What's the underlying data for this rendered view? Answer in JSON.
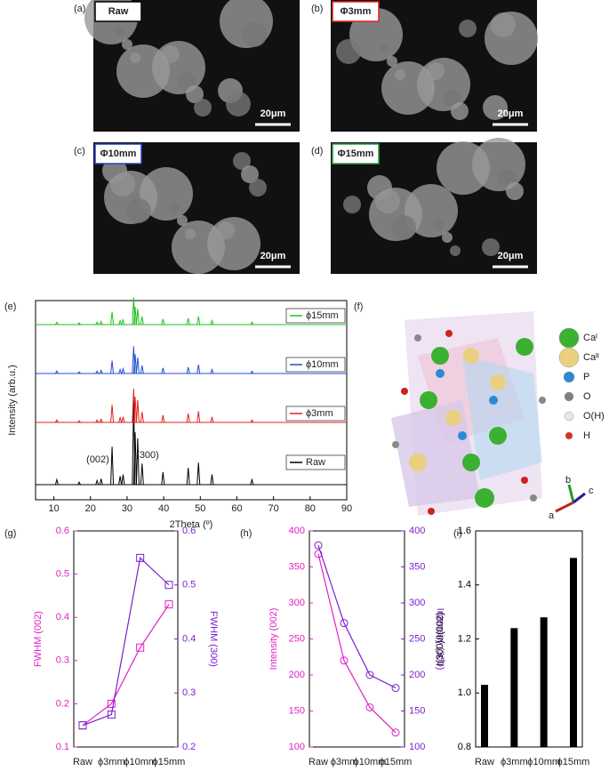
{
  "sem": [
    {
      "panel": "(a)",
      "label": "Raw",
      "scale": "20μm",
      "color": "#000000"
    },
    {
      "panel": "(b)",
      "label": "Φ3mm",
      "scale": "20μm",
      "color": "#e02020"
    },
    {
      "panel": "(c)",
      "label": "Φ10mm",
      "scale": "20μm",
      "color": "#2040c0"
    },
    {
      "panel": "(d)",
      "label": "Φ15mm",
      "scale": "20μm",
      "color": "#20a040"
    }
  ],
  "xrd": {
    "panel": "(e)",
    "type": "peaks",
    "xlabel": "2Theta (º)",
    "ylabel": "Intensity (arb.u.)",
    "xlim": [
      5,
      90
    ],
    "xticks": [
      10,
      20,
      30,
      40,
      50,
      60,
      70,
      80,
      90
    ],
    "annotations": [
      "(002)",
      "(300)"
    ],
    "peak_x": [
      10.8,
      16.9,
      21.8,
      22.9,
      25.9,
      28.1,
      28.9,
      31.8,
      32.2,
      32.9,
      34.1,
      39.8,
      46.7,
      49.5,
      53.2,
      64.1
    ],
    "series": [
      {
        "name": "Raw",
        "color": "#000000",
        "values": [
          6,
          3,
          5,
          7,
          45,
          10,
          12,
          100,
          62,
          55,
          25,
          15,
          20,
          26,
          12,
          6
        ]
      },
      {
        "name": "ϕ3mm",
        "color": "#e02020",
        "values": [
          3,
          2,
          3,
          4,
          22,
          6,
          7,
          42,
          32,
          28,
          13,
          9,
          11,
          14,
          7,
          3
        ]
      },
      {
        "name": "ϕ10mm",
        "color": "#2050d0",
        "values": [
          3,
          2,
          3,
          4,
          16,
          5,
          6,
          34,
          24,
          20,
          10,
          7,
          8,
          11,
          5,
          3
        ]
      },
      {
        "name": "ϕ15mm",
        "color": "#20c020",
        "values": [
          3,
          2,
          3,
          4,
          16,
          5,
          6,
          34,
          22,
          20,
          10,
          7,
          8,
          10,
          5,
          3
        ]
      }
    ]
  },
  "crystal": {
    "panel": "(f)",
    "legend": [
      {
        "label": "Caᴵ",
        "color": "#3cb030"
      },
      {
        "label": "Caᴵᴵ",
        "color": "#e8d080"
      },
      {
        "label": "P",
        "color": "#2a8ad8"
      },
      {
        "label": "O",
        "color": "#808080"
      },
      {
        "label": "O(H)",
        "color": "#e8e8e8"
      },
      {
        "label": "H",
        "color": "#e03020"
      }
    ],
    "axes": [
      "a",
      "b",
      "c"
    ]
  },
  "chart_data": [
    {
      "panel": "(g)",
      "type": "line",
      "categories": [
        "Raw",
        "ϕ3mm",
        "ϕ10mm",
        "ϕ15mm"
      ],
      "ylabel": "FWHM (002)",
      "y2label": "FWHM (300)",
      "ylim": [
        0.1,
        0.6
      ],
      "yticks": [
        0.1,
        0.2,
        0.3,
        0.4,
        0.5,
        0.6
      ],
      "y2lim": [
        0.2,
        0.6
      ],
      "y2ticks": [
        0.2,
        0.3,
        0.4,
        0.5,
        0.6
      ],
      "marker": "square",
      "series": [
        {
          "color": "#e020c8",
          "values": [
            0.15,
            0.2,
            0.33,
            0.43
          ]
        },
        {
          "color": "#7a20d0",
          "axis": "y2",
          "values": [
            0.24,
            0.26,
            0.55,
            0.5
          ]
        }
      ]
    },
    {
      "panel": "(h)",
      "type": "line",
      "categories": [
        "Raw",
        "ϕ3mm",
        "ϕ10mm",
        "ϕ15mm"
      ],
      "ylabel": "Intensity (002)",
      "y2label": "Intensity (300)",
      "ylim": [
        100,
        400
      ],
      "yticks": [
        100,
        150,
        200,
        250,
        300,
        350,
        400
      ],
      "y2lim": [
        100,
        400
      ],
      "y2ticks": [
        100,
        150,
        200,
        250,
        300,
        350,
        400
      ],
      "marker": "circle",
      "series": [
        {
          "color": "#e020c8",
          "values": [
            368,
            220,
            155,
            120
          ]
        },
        {
          "color": "#7a20d0",
          "axis": "y2",
          "values": [
            380,
            272,
            200,
            182
          ]
        }
      ]
    },
    {
      "panel": "(i)",
      "type": "bar",
      "categories": [
        "Raw",
        "ϕ3mm",
        "ϕ10mm",
        "ϕ15mm"
      ],
      "ylabel": "I(300)/I(002)",
      "ylim": [
        0.8,
        1.6
      ],
      "yticks": [
        0.8,
        {
          "value": 1,
          "label": "1.0"
        },
        1.2,
        1.4,
        1.6
      ],
      "color": "#000000",
      "values": [
        1.03,
        1.24,
        1.28,
        1.5
      ]
    }
  ]
}
